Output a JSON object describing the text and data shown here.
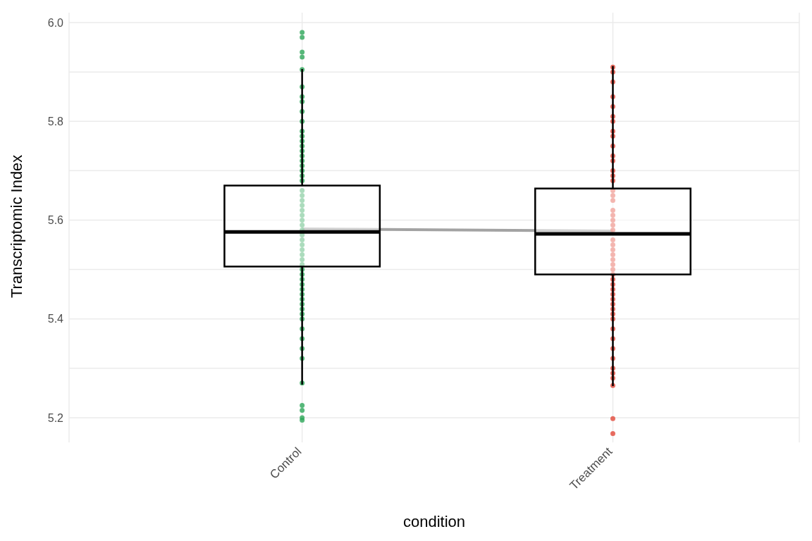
{
  "chart_data": {
    "type": "box",
    "xlabel": "condition",
    "ylabel": "Transcriptomic Index",
    "categories": [
      "Control",
      "Treatment"
    ],
    "boxes": [
      {
        "low": 5.267,
        "q1": 5.506,
        "median": 5.576,
        "q3": 5.67,
        "high": 5.906
      },
      {
        "low": 5.264,
        "q1": 5.49,
        "median": 5.572,
        "q3": 5.664,
        "high": 5.912
      }
    ],
    "ylim": [
      5.15,
      6.02
    ],
    "yticks": [
      5.2,
      {
        "value": 5.3,
        "label": null
      },
      5.4,
      {
        "value": 5.5,
        "label": null
      },
      5.6,
      {
        "value": 5.7,
        "label": null
      },
      5.8,
      {
        "value": 5.9,
        "label": null
      },
      "6.0"
    ],
    "grid": true,
    "series": [
      {
        "type": "scatter",
        "color": "#2ea75a",
        "x": [
          "Control",
          "Control",
          "Control",
          "Control",
          "Control",
          "Control",
          "Control",
          "Control",
          "Control",
          "Control",
          "Control",
          "Control",
          "Control",
          "Control",
          "Control",
          "Control",
          "Control",
          "Control",
          "Control",
          "Control",
          "Control",
          "Control",
          "Control",
          "Control",
          "Control",
          "Control",
          "Control",
          "Control",
          "Control",
          "Control",
          "Control",
          "Control",
          "Control",
          "Control",
          "Control",
          "Control",
          "Control",
          "Control",
          "Control",
          "Control",
          "Control",
          "Control",
          "Control",
          "Control",
          "Control",
          "Control",
          "Control",
          "Control",
          "Control",
          "Control",
          "Control",
          "Control",
          "Control",
          "Control",
          "Control",
          "Control",
          "Control"
        ],
        "values": [
          5.98,
          5.97,
          5.94,
          5.93,
          5.905,
          5.87,
          5.85,
          5.84,
          5.82,
          5.8,
          5.78,
          5.77,
          5.76,
          5.75,
          5.74,
          5.73,
          5.72,
          5.71,
          5.7,
          5.69,
          5.68,
          5.66,
          5.65,
          5.64,
          5.63,
          5.62,
          5.61,
          5.6,
          5.59,
          5.58,
          5.57,
          5.56,
          5.55,
          5.54,
          5.53,
          5.52,
          5.51,
          5.5,
          5.49,
          5.48,
          5.47,
          5.46,
          5.45,
          5.44,
          5.43,
          5.42,
          5.41,
          5.4,
          5.38,
          5.36,
          5.34,
          5.32,
          5.27,
          5.225,
          5.215,
          5.2,
          5.195
        ]
      },
      {
        "type": "scatter",
        "color": "#e2483a",
        "x": [
          "Treatment",
          "Treatment",
          "Treatment",
          "Treatment",
          "Treatment",
          "Treatment",
          "Treatment",
          "Treatment",
          "Treatment",
          "Treatment",
          "Treatment",
          "Treatment",
          "Treatment",
          "Treatment",
          "Treatment",
          "Treatment",
          "Treatment",
          "Treatment",
          "Treatment",
          "Treatment",
          "Treatment",
          "Treatment",
          "Treatment",
          "Treatment",
          "Treatment",
          "Treatment",
          "Treatment",
          "Treatment",
          "Treatment",
          "Treatment",
          "Treatment",
          "Treatment",
          "Treatment",
          "Treatment",
          "Treatment",
          "Treatment",
          "Treatment",
          "Treatment",
          "Treatment",
          "Treatment",
          "Treatment",
          "Treatment",
          "Treatment",
          "Treatment",
          "Treatment",
          "Treatment",
          "Treatment",
          "Treatment",
          "Treatment",
          "Treatment"
        ],
        "values": [
          5.91,
          5.9,
          5.88,
          5.85,
          5.83,
          5.81,
          5.8,
          5.78,
          5.77,
          5.75,
          5.73,
          5.72,
          5.7,
          5.69,
          5.68,
          5.66,
          5.65,
          5.64,
          5.62,
          5.61,
          5.6,
          5.59,
          5.58,
          5.56,
          5.55,
          5.54,
          5.53,
          5.52,
          5.51,
          5.5,
          5.49,
          5.48,
          5.47,
          5.46,
          5.45,
          5.44,
          5.43,
          5.42,
          5.41,
          5.4,
          5.38,
          5.36,
          5.34,
          5.32,
          5.3,
          5.29,
          5.28,
          5.265,
          5.198,
          5.168
        ]
      },
      {
        "type": "line",
        "color": "#999999",
        "x": [
          "Control",
          "Treatment"
        ],
        "values": [
          5.582,
          5.578
        ]
      }
    ]
  }
}
